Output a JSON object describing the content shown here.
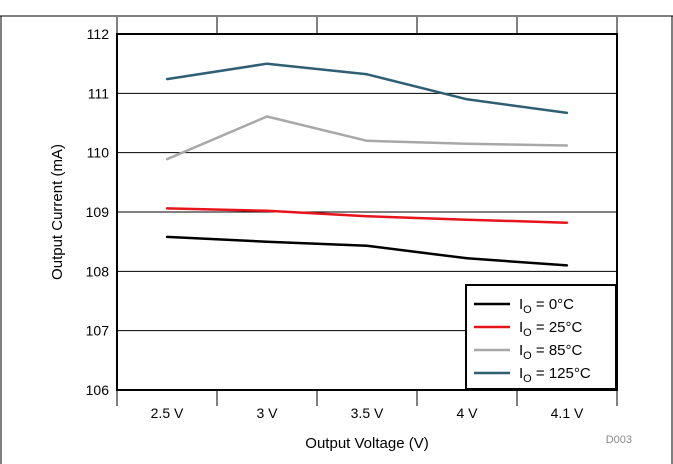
{
  "chart_data": {
    "type": "line",
    "title": "",
    "xlabel": "Output Voltage (V)",
    "ylabel": "Output Current (mA)",
    "categories": [
      "2.5 V",
      "3 V",
      "3.5 V",
      "4 V",
      "4.1 V"
    ],
    "ylim": [
      106,
      112
    ],
    "yticks": [
      106,
      107,
      108,
      109,
      110,
      111,
      112
    ],
    "grid": true,
    "legend_position": "bottom-right",
    "series": [
      {
        "name": "I",
        "sub": "O",
        "suffix": " = 0°C",
        "color": "#000000",
        "values": [
          108.58,
          108.5,
          108.43,
          108.22,
          108.1
        ]
      },
      {
        "name": "I",
        "sub": "O",
        "suffix": " = 25°C",
        "color": "#e8141c",
        "values": [
          109.06,
          109.02,
          108.93,
          108.87,
          108.82
        ]
      },
      {
        "name": "I",
        "sub": "O",
        "suffix": " = 85°C",
        "color": "#a8a8a8",
        "values": [
          109.89,
          110.61,
          110.2,
          110.15,
          110.12
        ]
      },
      {
        "name": "I",
        "sub": "O",
        "suffix": " = 125°C",
        "color": "#2e5f74",
        "values": [
          111.24,
          111.5,
          111.32,
          110.9,
          110.67
        ]
      }
    ],
    "watermark": "D003"
  }
}
